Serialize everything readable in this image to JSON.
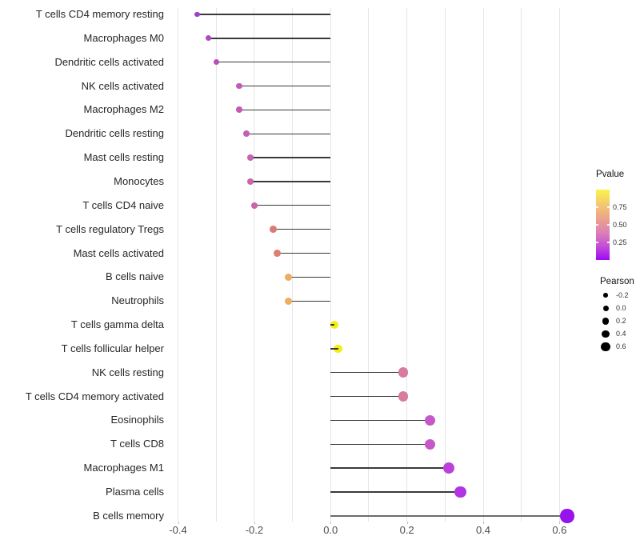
{
  "chart_data": {
    "type": "scatter",
    "subtype": "lollipop",
    "title": "",
    "xlabel": "",
    "ylabel": "",
    "xlim": [
      -0.42,
      0.66
    ],
    "grid_step": 0.1,
    "grid_range": [
      -0.4,
      0.6
    ],
    "x_ticks": [
      -0.4,
      -0.2,
      0.0,
      0.2,
      0.4,
      0.6
    ],
    "x_tick_labels": [
      "-0.4",
      "-0.2",
      "0.0",
      "0.2",
      "0.4",
      "0.6"
    ],
    "rows": [
      {
        "label": "T cells CD4 memory resting",
        "pearson": -0.35,
        "color": "#a13fc6"
      },
      {
        "label": "Macrophages M0",
        "pearson": -0.32,
        "color": "#ae49c4"
      },
      {
        "label": "Dendritic cells activated",
        "pearson": -0.3,
        "color": "#b74ec0"
      },
      {
        "label": "NK cells activated",
        "pearson": -0.24,
        "color": "#c35bb6"
      },
      {
        "label": "Macrophages M2",
        "pearson": -0.24,
        "color": "#c35bb6"
      },
      {
        "label": "Dendritic cells resting",
        "pearson": -0.22,
        "color": "#c55fb3"
      },
      {
        "label": "Mast cells resting",
        "pearson": -0.21,
        "color": "#c763af"
      },
      {
        "label": "Monocytes",
        "pearson": -0.21,
        "color": "#c965aa"
      },
      {
        "label": "T cells CD4 naive",
        "pearson": -0.2,
        "color": "#c965aa"
      },
      {
        "label": "T cells regulatory  Tregs",
        "pearson": -0.15,
        "color": "#db7b76"
      },
      {
        "label": "Mast cells activated",
        "pearson": -0.14,
        "color": "#dc7e72"
      },
      {
        "label": "B cells naive",
        "pearson": -0.11,
        "color": "#ecac63"
      },
      {
        "label": "Neutrophils",
        "pearson": -0.11,
        "color": "#edae60"
      },
      {
        "label": "T cells gamma delta",
        "pearson": 0.01,
        "color": "#f2ef11",
        "stem_over_dot": true
      },
      {
        "label": "T cells follicular helper",
        "pearson": 0.02,
        "color": "#f2ef11",
        "stem_over_dot": true
      },
      {
        "label": "NK cells resting",
        "pearson": 0.19,
        "color": "#d87b9e"
      },
      {
        "label": "T cells CD4 memory activated",
        "pearson": 0.19,
        "color": "#d87b9e"
      },
      {
        "label": "Eosinophils",
        "pearson": 0.26,
        "color": "#c658c9"
      },
      {
        "label": "T cells CD8",
        "pearson": 0.26,
        "color": "#c658c9"
      },
      {
        "label": "Macrophages M1",
        "pearson": 0.31,
        "color": "#bb41da"
      },
      {
        "label": "Plasma cells",
        "pearson": 0.34,
        "color": "#b136e2"
      },
      {
        "label": "B cells memory",
        "pearson": 0.62,
        "color": "#9713ec",
        "stem_color": "#6b6b6b",
        "stem_width": 2.2
      }
    ],
    "stem_default_color": "#3a3a3a",
    "stem_default_width": 1.4,
    "legends": {
      "pvalue": {
        "title": "Pvalue",
        "range": [
          0,
          1
        ],
        "tick_values": [
          0.75,
          0.5,
          0.25
        ],
        "tick_labels": [
          "0.75",
          "0.50",
          "0.25"
        ],
        "gradient_top_to_bottom": [
          "#faf44c",
          "#f5ca6e",
          "#eba687",
          "#dd82b4",
          "#c44fd4",
          "#9c09f5"
        ]
      },
      "pearson": {
        "title": "Pearson",
        "items": [
          {
            "label": "-0.2",
            "value": -0.2
          },
          {
            "label": "0.0",
            "value": 0.0
          },
          {
            "label": "0.2",
            "value": 0.2
          },
          {
            "label": "0.4",
            "value": 0.4
          },
          {
            "label": "0.6",
            "value": 0.6
          }
        ]
      }
    }
  }
}
